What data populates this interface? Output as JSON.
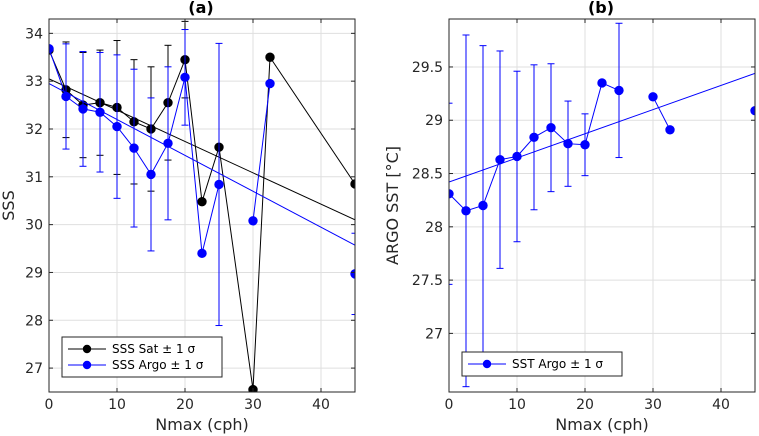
{
  "chart_data": [
    {
      "type": "line",
      "title": "(a)",
      "xlabel": "Nmax (cph)",
      "ylabel": "SSS",
      "xlim": [
        0,
        45
      ],
      "ylim": [
        26.5,
        34.3
      ],
      "xticks": [
        0,
        10,
        20,
        30,
        40
      ],
      "yticks": [
        27,
        28,
        29,
        30,
        31,
        32,
        33,
        34
      ],
      "grid": true,
      "legend_position": "bottom-left",
      "series": [
        {
          "name": "SSS Sat ± 1 σ",
          "color": "#000000",
          "x": [
            0,
            2.5,
            5,
            7.5,
            10,
            12.5,
            15,
            17.5,
            20,
            22.5,
            25,
            30,
            32.5,
            45
          ],
          "y": [
            33.65,
            32.82,
            32.5,
            32.55,
            32.45,
            32.15,
            32.0,
            32.55,
            33.45,
            30.48,
            31.62,
            26.55,
            33.5,
            30.85
          ],
          "err": [
            0,
            1.0,
            1.1,
            1.1,
            1.4,
            1.3,
            1.3,
            1.2,
            0.8,
            null,
            null,
            null,
            null,
            null
          ],
          "line_breaks_before": [],
          "fit": [
            [
              0,
              33.05
            ],
            [
              45,
              30.1
            ]
          ]
        },
        {
          "name": "SSS Argo ± 1 σ",
          "color": "#0000ff",
          "x": [
            0,
            2.5,
            5,
            7.5,
            10,
            12.5,
            15,
            17.5,
            20,
            22.5,
            25,
            30,
            32.5,
            45
          ],
          "y": [
            33.68,
            32.68,
            32.42,
            32.35,
            32.05,
            31.6,
            31.05,
            31.7,
            33.08,
            29.4,
            30.84,
            30.08,
            32.95,
            28.97
          ],
          "err": [
            0,
            1.1,
            1.2,
            1.25,
            1.5,
            1.65,
            1.6,
            1.6,
            1.0,
            0,
            2.95,
            0,
            0,
            0.85
          ],
          "line_breaks_before": [
            11,
            13
          ],
          "fit": [
            [
              0,
              32.95
            ],
            [
              45,
              29.57
            ]
          ]
        }
      ]
    },
    {
      "type": "line",
      "title": "(b)",
      "xlabel": "Nmax (cph)",
      "ylabel": "ARGO SST [°C]",
      "xlim": [
        0,
        45
      ],
      "ylim": [
        26.45,
        29.95
      ],
      "xticks": [
        0,
        10,
        20,
        30,
        40
      ],
      "yticks": [
        27,
        27.5,
        28,
        28.5,
        29,
        29.5
      ],
      "ytick_labels": [
        "27",
        "27.5",
        "28",
        "28.5",
        "29",
        "29.5"
      ],
      "grid": true,
      "legend_position": "bottom-left",
      "series": [
        {
          "name": "SST Argo ± 1 σ",
          "color": "#0000ff",
          "x": [
            0,
            2.5,
            5,
            7.5,
            10,
            12.5,
            15,
            17.5,
            20,
            22.5,
            25,
            30,
            32.5,
            45
          ],
          "y": [
            28.31,
            28.15,
            28.2,
            28.63,
            28.66,
            28.84,
            28.93,
            28.78,
            28.77,
            29.35,
            29.28,
            29.22,
            28.91,
            29.09
          ],
          "err": [
            0.85,
            1.65,
            1.5,
            1.02,
            0.8,
            0.68,
            0.6,
            0.4,
            0.29,
            0,
            0.63,
            0,
            0,
            0
          ],
          "line_breaks_before": [
            11,
            13
          ],
          "fit": [
            [
              0,
              28.42
            ],
            [
              45,
              29.44
            ]
          ]
        }
      ]
    }
  ]
}
